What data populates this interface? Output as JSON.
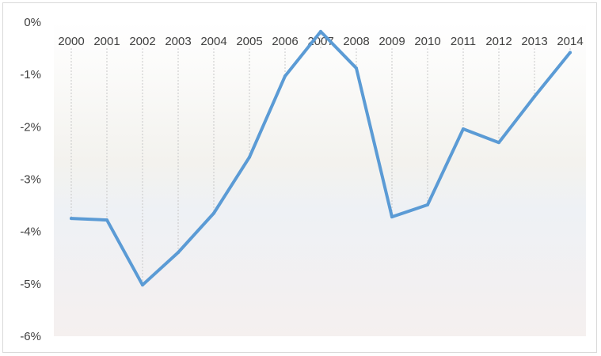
{
  "chart_data": {
    "type": "line",
    "title": "",
    "xlabel": "",
    "ylabel": "",
    "x": [
      "2000",
      "2001",
      "2002",
      "2003",
      "2004",
      "2005",
      "2006",
      "2007",
      "2008",
      "2009",
      "2010",
      "2011",
      "2012",
      "2013",
      "2014"
    ],
    "series": [
      {
        "values": [
          -3.75,
          -3.78,
          -5.02,
          -4.4,
          -3.65,
          -2.58,
          -1.03,
          -0.18,
          -0.88,
          -3.72,
          -3.49,
          -2.04,
          -2.3,
          -1.42,
          -0.58
        ],
        "color": "#5b9bd5"
      }
    ],
    "ylim": [
      -6,
      0
    ],
    "yticks": [
      0,
      -1,
      -2,
      -3,
      -4,
      -5,
      -6
    ],
    "ytick_labels": [
      "0%",
      "-1%",
      "-2%",
      "-3%",
      "-4%",
      "-5%",
      "-6%"
    ],
    "x_axis_position": "top",
    "drop_lines": true,
    "grid": false,
    "legend": "none",
    "background": "gradient"
  }
}
